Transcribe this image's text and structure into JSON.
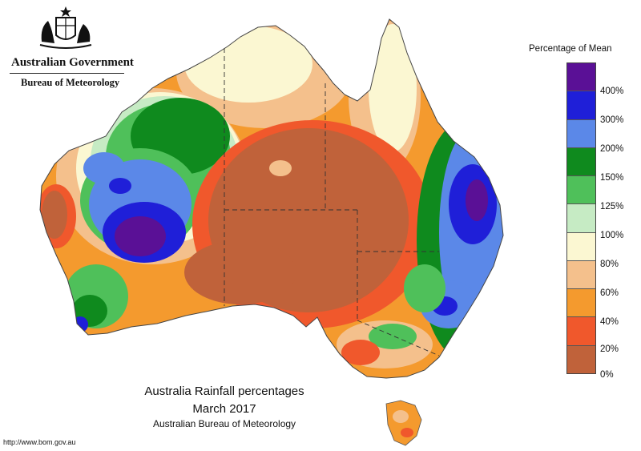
{
  "header": {
    "government": "Australian Government",
    "bureau": "Bureau of Meteorology"
  },
  "legend": {
    "title": "Percentage of Mean",
    "colors": [
      "#5a1096",
      "#1f1fd8",
      "#5b88e8",
      "#0f8a1e",
      "#4fc05a",
      "#c6ebc4",
      "#fbf7d2",
      "#f4c08c",
      "#f49a2e",
      "#f0582c",
      "#c0623a"
    ],
    "labels": [
      "400%",
      "300%",
      "200%",
      "150%",
      "125%",
      "100%",
      "80%",
      "60%",
      "40%",
      "20%",
      "0%"
    ]
  },
  "caption": {
    "title": "Australia Rainfall percentages",
    "period": "March 2017",
    "source": "Australian Bureau of Meteorology"
  },
  "footer": {
    "url": "http://www.bom.gov.au"
  }
}
